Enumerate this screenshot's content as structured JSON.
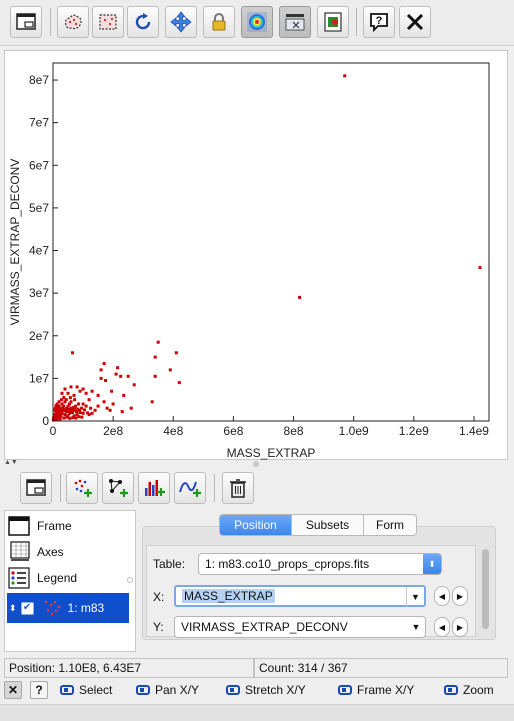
{
  "toolbar": {
    "icons": [
      "window-export-icon",
      "subset-cloud-icon",
      "subset-region-icon",
      "rescale-icon",
      "navigate-arrows-icon",
      "lock-axes-icon",
      "density-map-icon",
      "sketch-toggle-icon",
      "export-image-icon",
      "help-icon",
      "close-icon"
    ]
  },
  "chart_data": {
    "type": "scatter",
    "xlabel": "MASS_EXTRAP",
    "ylabel": "VIRMASS_EXTRAP_DECONV",
    "xlim": [
      0,
      1450000000.0
    ],
    "ylim": [
      0,
      84000000.0
    ],
    "x_ticks": [
      {
        "v": 0,
        "label": "0"
      },
      {
        "v": 200000000,
        "label": "2e8"
      },
      {
        "v": 400000000,
        "label": "4e8"
      },
      {
        "v": 600000000,
        "label": "6e8"
      },
      {
        "v": 800000000,
        "label": "8e8"
      },
      {
        "v": 1000000000,
        "label": "1.0e9"
      },
      {
        "v": 1200000000,
        "label": "1.2e9"
      },
      {
        "v": 1400000000,
        "label": "1.4e9"
      }
    ],
    "y_ticks": [
      {
        "v": 0,
        "label": "0"
      },
      {
        "v": 10000000,
        "label": "1e7"
      },
      {
        "v": 20000000,
        "label": "2e7"
      },
      {
        "v": 30000000,
        "label": "3e7"
      },
      {
        "v": 40000000,
        "label": "4e7"
      },
      {
        "v": 50000000,
        "label": "5e7"
      },
      {
        "v": 60000000,
        "label": "6e7"
      },
      {
        "v": 70000000,
        "label": "7e7"
      },
      {
        "v": 80000000,
        "label": "8e7"
      }
    ],
    "grid": false,
    "color": "#cc0000",
    "points": [
      [
        970000000,
        81000000
      ],
      [
        1420000000,
        36000000
      ],
      [
        820000000,
        29000000
      ],
      [
        350000000,
        18500000
      ],
      [
        410000000,
        16000000
      ],
      [
        65000000,
        16000000
      ],
      [
        340000000,
        15000000
      ],
      [
        170000000,
        13500000
      ],
      [
        160000000,
        12000000
      ],
      [
        215000000,
        12500000
      ],
      [
        390000000,
        12000000
      ],
      [
        210000000,
        11000000
      ],
      [
        225000000,
        10500000
      ],
      [
        250000000,
        10500000
      ],
      [
        160000000,
        10000000
      ],
      [
        340000000,
        10500000
      ],
      [
        420000000,
        9000000
      ],
      [
        175000000,
        9500000
      ],
      [
        100000000,
        7500000
      ],
      [
        270000000,
        8500000
      ],
      [
        90000000,
        7000000
      ],
      [
        40000000,
        7500000
      ],
      [
        60000000,
        8000000
      ],
      [
        80000000,
        8000000
      ],
      [
        30000000,
        6500000
      ],
      [
        50000000,
        6500000
      ],
      [
        70000000,
        6000000
      ],
      [
        110000000,
        6500000
      ],
      [
        130000000,
        7000000
      ],
      [
        150000000,
        6000000
      ],
      [
        195000000,
        7000000
      ],
      [
        235000000,
        6000000
      ],
      [
        330000000,
        4500000
      ],
      [
        120000000,
        5000000
      ],
      [
        170000000,
        4500000
      ],
      [
        100000000,
        4000000
      ],
      [
        60000000,
        4500000
      ],
      [
        180000000,
        3000000
      ],
      [
        200000000,
        4000000
      ],
      [
        260000000,
        3000000
      ],
      [
        230000000,
        2200000
      ],
      [
        190000000,
        2500000
      ],
      [
        150000000,
        3500000
      ],
      [
        140000000,
        2500000
      ],
      [
        125000000,
        3000000
      ],
      [
        110000000,
        3500000
      ],
      [
        95000000,
        3000000
      ],
      [
        85000000,
        4000000
      ],
      [
        75000000,
        3500000
      ],
      [
        70000000,
        2500000
      ],
      [
        60000000,
        3000000
      ],
      [
        55000000,
        4000000
      ],
      [
        50000000,
        3500000
      ],
      [
        45000000,
        3000000
      ],
      [
        40000000,
        4500000
      ],
      [
        35000000,
        3500000
      ],
      [
        30000000,
        4000000
      ],
      [
        25000000,
        3000000
      ],
      [
        20000000,
        3500000
      ],
      [
        15000000,
        2500000
      ],
      [
        90000000,
        2000000
      ],
      [
        80000000,
        1500000
      ],
      [
        70000000,
        1200000
      ],
      [
        65000000,
        2000000
      ],
      [
        55000000,
        1800000
      ],
      [
        50000000,
        1200000
      ],
      [
        45000000,
        2200000
      ],
      [
        40000000,
        1500000
      ],
      [
        35000000,
        2500000
      ],
      [
        30000000,
        1800000
      ],
      [
        25000000,
        2200000
      ],
      [
        20000000,
        1500000
      ],
      [
        18000000,
        1000000
      ],
      [
        15000000,
        1800000
      ],
      [
        12000000,
        1200000
      ],
      [
        10000000,
        2000000
      ],
      [
        8000000,
        800000
      ],
      [
        6000000,
        1500000
      ],
      [
        5000000,
        500000
      ],
      [
        4000000,
        1000000
      ],
      [
        3000000,
        300000
      ],
      [
        2000000,
        700000
      ],
      [
        1000000,
        200000
      ],
      [
        7000000,
        2500000
      ],
      [
        9000000,
        3000000
      ],
      [
        11000000,
        2800000
      ],
      [
        13000000,
        3200000
      ],
      [
        17000000,
        2600000
      ],
      [
        22000000,
        2800000
      ],
      [
        28000000,
        2600000
      ],
      [
        32000000,
        3000000
      ],
      [
        38000000,
        2400000
      ],
      [
        42000000,
        2700000
      ],
      [
        48000000,
        2400000
      ],
      [
        52000000,
        2700000
      ],
      [
        58000000,
        2300000
      ],
      [
        62000000,
        2600000
      ],
      [
        68000000,
        3200000
      ],
      [
        72000000,
        3000000
      ],
      [
        78000000,
        2200000
      ],
      [
        82000000,
        2800000
      ],
      [
        88000000,
        2500000
      ],
      [
        100000000,
        1800000
      ],
      [
        105000000,
        2600000
      ],
      [
        115000000,
        1900000
      ],
      [
        120000000,
        1500000
      ],
      [
        130000000,
        1800000
      ],
      [
        24000000,
        500000
      ],
      [
        36000000,
        700000
      ],
      [
        46000000,
        900000
      ],
      [
        56000000,
        600000
      ],
      [
        66000000,
        800000
      ],
      [
        76000000,
        700000
      ],
      [
        86000000,
        1000000
      ],
      [
        96000000,
        900000
      ],
      [
        14000000,
        400000
      ],
      [
        26000000,
        1200000
      ],
      [
        44000000,
        5000000
      ],
      [
        58000000,
        5500000
      ],
      [
        72000000,
        5000000
      ],
      [
        36000000,
        5500000
      ],
      [
        28000000,
        5000000
      ],
      [
        20000000,
        4500000
      ],
      [
        14000000,
        4000000
      ],
      [
        10000000,
        3600000
      ],
      [
        5000000,
        2800000
      ]
    ]
  },
  "layers": {
    "frame": "Frame",
    "axes": "Axes",
    "legend": "Legend",
    "plot_layer": "1: m83",
    "plot_layer_checked": true
  },
  "tabs": {
    "position": "Position",
    "subsets": "Subsets",
    "form": "Form",
    "active": "position"
  },
  "form": {
    "table_label": "Table:",
    "table_value": "1: m83.co10_props_cprops.fits",
    "x_label": "X:",
    "x_value": "MASS_EXTRAP",
    "y_label": "Y:",
    "y_value": "VIRMASS_EXTRAP_DECONV"
  },
  "status": {
    "position": "Position: 1.10E8, 6.43E7",
    "count": "Count: 314 / 367"
  },
  "mouse_hints": {
    "select": "Select",
    "pan": "Pan X/Y",
    "stretch": "Stretch X/Y",
    "frame": "Frame X/Y",
    "zoom": "Zoom"
  },
  "hint_buttons": {
    "close": "✕",
    "help": "?"
  }
}
